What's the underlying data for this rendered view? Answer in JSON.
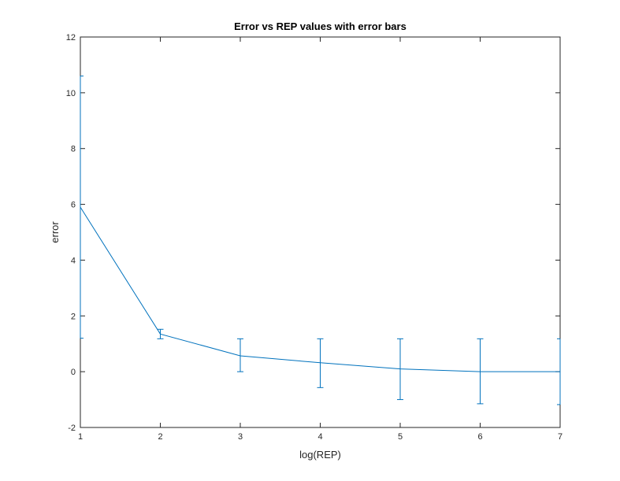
{
  "chart_data": {
    "type": "line",
    "title": "Error vs REP values with error bars",
    "xlabel": "log(REP)",
    "ylabel": "error",
    "xlim": [
      1,
      7
    ],
    "ylim": [
      -2,
      12
    ],
    "xticks": [
      1,
      2,
      3,
      4,
      5,
      6,
      7
    ],
    "yticks": [
      -2,
      0,
      2,
      4,
      6,
      8,
      10,
      12
    ],
    "grid": false,
    "box": true,
    "series": [
      {
        "x": [
          1,
          2,
          3,
          4,
          5,
          6,
          7
        ],
        "y": [
          5.9,
          1.35,
          0.57,
          0.32,
          0.1,
          0.0,
          0.0
        ],
        "error_lower": [
          1.2,
          1.18,
          0.0,
          -0.57,
          -1.0,
          -1.15,
          -1.18
        ],
        "error_upper": [
          10.6,
          1.52,
          1.18,
          1.18,
          1.18,
          1.18,
          1.18
        ],
        "color": "#0072bd"
      }
    ]
  }
}
